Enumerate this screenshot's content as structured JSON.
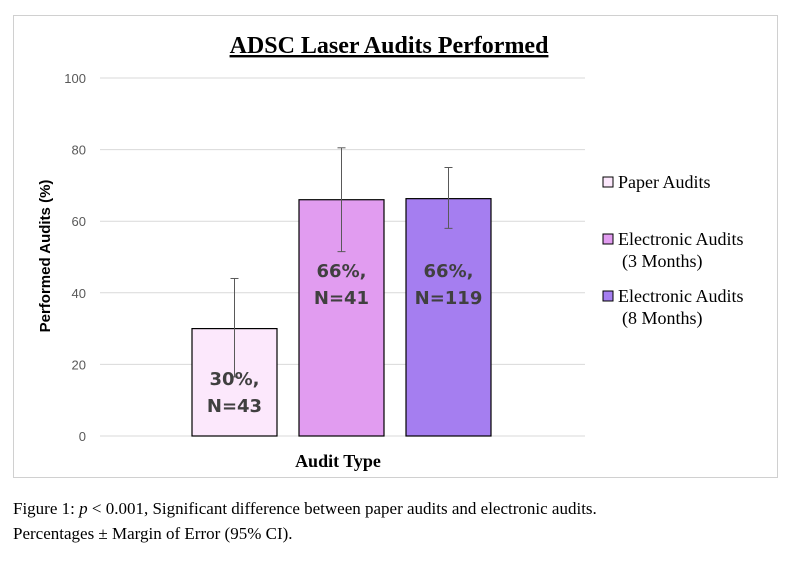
{
  "chart_data": {
    "type": "bar",
    "title": "ADSC Laser Audits Performed",
    "xlabel": "Audit Type",
    "ylabel": "Performed Audits (%)",
    "ylim": [
      0,
      100
    ],
    "yticks": [
      0,
      20,
      40,
      60,
      80,
      100
    ],
    "grid": true,
    "legend_position": "right",
    "categories": [
      "Paper Audits",
      "Electronic Audits (3 Months)",
      "Electronic Audits (8 Months)"
    ],
    "legend": [
      [
        "Paper Audits"
      ],
      [
        "Electronic Audits",
        "(3 Months)"
      ],
      [
        "Electronic Audits",
        "(8 Months)"
      ]
    ],
    "values": [
      30,
      66,
      66.3
    ],
    "error_low": [
      16.5,
      51.5,
      58
    ],
    "error_high": [
      44,
      80.5,
      75
    ],
    "data_labels": [
      [
        "30%,",
        "N=43"
      ],
      [
        "66%,",
        "N=41"
      ],
      [
        "66%,",
        "N=119"
      ]
    ],
    "colors": [
      "#fce8fc",
      "#e19cf0",
      "#a57ef0"
    ]
  },
  "caption": {
    "p_symbol": "p",
    "line1_rest": " < 0.001, Significant difference between paper audits and electronic audits.",
    "line1_prefix": "Figure 1: ",
    "line2": "Percentages ± Margin of Error (95% CI)."
  }
}
